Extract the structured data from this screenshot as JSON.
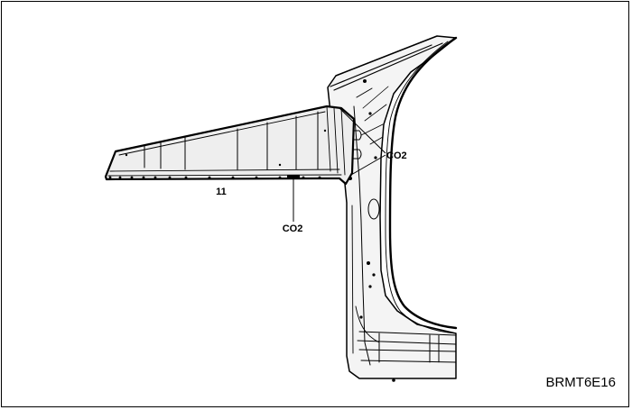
{
  "callouts": {
    "part_number": "11",
    "weld_upper": "CO2",
    "weld_lower": "CO2"
  },
  "figure_code": "BRMT6E16"
}
